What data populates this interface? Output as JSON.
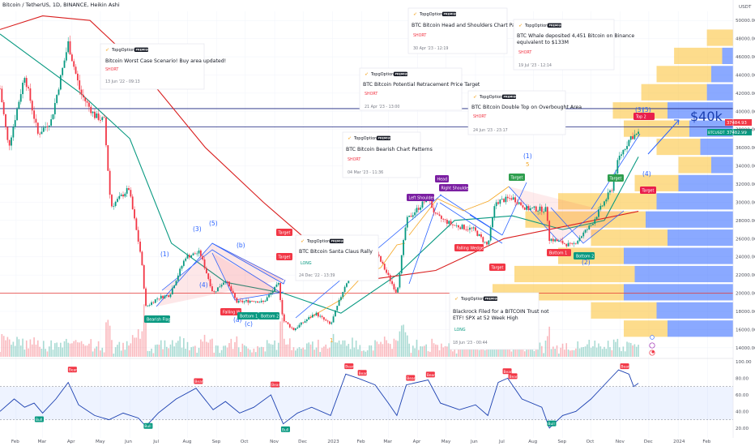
{
  "header": {
    "title": "Bitcoin / TetherUS, 1D, BINANCE, Heikin Ashi",
    "currency": "USDT"
  },
  "colors": {
    "up": "#089981",
    "down": "#f23645",
    "ema_green": "#089981",
    "ma_red": "#d91e1e",
    "pattern_blue": "#2962ff",
    "tag_green": "#2e9e4e",
    "tag_red": "#e91e4c",
    "tag_purple": "#7b1fa2",
    "level_line": "#1a237e",
    "support_line": "#e53935"
  },
  "chart_data": {
    "type": "candlestick",
    "title": "Bitcoin / TetherUS, 1D, BINANCE, Heikin Ashi",
    "y_axis": {
      "ticks": [
        14000,
        16000,
        18000,
        20000,
        22000,
        24000,
        26000,
        28000,
        30000,
        32000,
        34000,
        36000,
        38000,
        40000,
        42000,
        44000,
        46000,
        48000,
        50000
      ],
      "range": [
        13000,
        51000
      ]
    },
    "x_axis": {
      "ticks": [
        "Feb",
        "Mar",
        "Apr",
        "May",
        "Jun",
        "Jul",
        "Aug",
        "Sep",
        "Oct",
        "Nov",
        "Dec",
        "2023",
        "Feb",
        "Mar",
        "Apr",
        "May",
        "Jun",
        "Jul",
        "Aug",
        "Sep",
        "Oct",
        "Nov",
        "Dec",
        "2024",
        "Feb"
      ],
      "range": [
        "2022-01-15",
        "2024-02-28"
      ]
    },
    "price_path": [
      [
        "2022-01-15",
        42500
      ],
      [
        "2022-01-24",
        36000
      ],
      [
        "2022-02-10",
        44000
      ],
      [
        "2022-02-24",
        37500
      ],
      [
        "2022-03-10",
        39000
      ],
      [
        "2022-03-28",
        47500
      ],
      [
        "2022-04-10",
        42000
      ],
      [
        "2022-04-25",
        39500
      ],
      [
        "2022-05-05",
        39000
      ],
      [
        "2022-05-12",
        29500
      ],
      [
        "2022-05-31",
        31500
      ],
      [
        "2022-06-13",
        24000
      ],
      [
        "2022-06-18",
        18500
      ],
      [
        "2022-07-01",
        19500
      ],
      [
        "2022-07-13",
        19800
      ],
      [
        "2022-07-30",
        24000
      ],
      [
        "2022-08-14",
        24500
      ],
      [
        "2022-08-28",
        20000
      ],
      [
        "2022-09-10",
        21500
      ],
      [
        "2022-09-22",
        19000
      ],
      [
        "2022-10-10",
        19200
      ],
      [
        "2022-10-20",
        19000
      ],
      [
        "2022-11-05",
        21000
      ],
      [
        "2022-11-10",
        17000
      ],
      [
        "2022-11-21",
        16000
      ],
      [
        "2022-12-14",
        17800
      ],
      [
        "2022-12-30",
        16500
      ],
      [
        "2023-01-14",
        20800
      ],
      [
        "2023-01-25",
        23000
      ],
      [
        "2023-02-16",
        24500
      ],
      [
        "2023-03-10",
        20000
      ],
      [
        "2023-03-20",
        28000
      ],
      [
        "2023-04-12",
        30500
      ],
      [
        "2023-04-20",
        28500
      ],
      [
        "2023-05-08",
        27500
      ],
      [
        "2023-05-30",
        27000
      ],
      [
        "2023-06-14",
        25200
      ],
      [
        "2023-06-22",
        30000
      ],
      [
        "2023-07-10",
        30500
      ],
      [
        "2023-07-25",
        29300
      ],
      [
        "2023-08-15",
        29200
      ],
      [
        "2023-08-18",
        26000
      ],
      [
        "2023-09-11",
        25200
      ],
      [
        "2023-10-01",
        27500
      ],
      [
        "2023-10-23",
        31500
      ],
      [
        "2023-10-30",
        34800
      ],
      [
        "2023-11-12",
        37200
      ],
      [
        "2023-11-20",
        37500
      ]
    ],
    "moving_averages": [
      {
        "color": "#089981",
        "values": [
          [
            "2022-01-15",
            48500
          ],
          [
            "2022-04-10",
            42000
          ],
          [
            "2022-06-01",
            37000
          ],
          [
            "2022-07-15",
            25500
          ],
          [
            "2022-09-10",
            21200
          ],
          [
            "2022-11-10",
            20000
          ],
          [
            "2023-01-10",
            17800
          ],
          [
            "2023-03-10",
            22000
          ],
          [
            "2023-05-10",
            28000
          ],
          [
            "2023-07-10",
            28500
          ],
          [
            "2023-09-01",
            27000
          ],
          [
            "2023-10-15",
            28000
          ],
          [
            "2023-11-20",
            35000
          ]
        ]
      },
      {
        "color": "#d91e1e",
        "values": [
          [
            "2022-01-15",
            49000
          ],
          [
            "2022-03-01",
            50500
          ],
          [
            "2022-04-20",
            50000
          ],
          [
            "2022-06-10",
            45000
          ],
          [
            "2022-08-20",
            36000
          ],
          [
            "2022-10-20",
            30000
          ],
          [
            "2022-12-20",
            24500
          ],
          [
            "2023-02-10",
            21500
          ],
          [
            "2023-04-20",
            22500
          ],
          [
            "2023-07-01",
            26000
          ],
          [
            "2023-09-01",
            27300
          ],
          [
            "2023-11-20",
            29000
          ]
        ]
      }
    ],
    "horizontal_levels": [
      {
        "price": 40300,
        "color": "#1a237e"
      },
      {
        "price": 38300,
        "color": "#1a237e"
      },
      {
        "price": 20000,
        "color": "#e53935"
      }
    ],
    "price_badges": [
      {
        "value": "37484.93",
        "bg": "#f23645"
      },
      {
        "value": "37482.99",
        "bg": "#089981"
      },
      {
        "value": "BTCUSDT",
        "bg": "#089981"
      }
    ],
    "volume_profile": [
      {
        "price": 48000,
        "left": 0.12,
        "right": 0.0
      },
      {
        "price": 46000,
        "left": 0.22,
        "right": 0.05
      },
      {
        "price": 44000,
        "left": 0.25,
        "right": 0.1
      },
      {
        "price": 42000,
        "left": 0.3,
        "right": 0.12
      },
      {
        "price": 40000,
        "left": 0.25,
        "right": 0.3
      },
      {
        "price": 38000,
        "left": 0.3,
        "right": 0.2
      },
      {
        "price": 36000,
        "left": 0.2,
        "right": 0.15
      },
      {
        "price": 34000,
        "left": 0.15,
        "right": 0.1
      },
      {
        "price": 32000,
        "left": 0.2,
        "right": 0.25
      },
      {
        "price": 30000,
        "left": 0.45,
        "right": 0.35
      },
      {
        "price": 28000,
        "left": 0.55,
        "right": 0.4
      },
      {
        "price": 26000,
        "left": 0.35,
        "right": 0.3
      },
      {
        "price": 24000,
        "left": 0.3,
        "right": 0.5
      },
      {
        "price": 22000,
        "left": 0.55,
        "right": 0.45
      },
      {
        "price": 20000,
        "left": 0.6,
        "right": 0.5
      },
      {
        "price": 18000,
        "left": 0.3,
        "right": 0.35
      },
      {
        "price": 16000,
        "left": 0.2,
        "right": 0.3
      }
    ],
    "rsi": {
      "ticks": [
        20.0,
        40.0,
        60.0,
        80.0,
        100.0
      ],
      "range": [
        10,
        100
      ],
      "band": [
        30,
        70
      ],
      "values": [
        [
          "2022-01-15",
          40
        ],
        [
          "2022-01-30",
          55
        ],
        [
          "2022-02-10",
          45
        ],
        [
          "2022-02-20",
          50
        ],
        [
          "2022-03-01",
          38
        ],
        [
          "2022-03-15",
          55
        ],
        [
          "2022-03-28",
          75
        ],
        [
          "2022-04-08",
          48
        ],
        [
          "2022-04-25",
          35
        ],
        [
          "2022-05-10",
          30
        ],
        [
          "2022-05-25",
          38
        ],
        [
          "2022-06-10",
          32
        ],
        [
          "2022-06-18",
          22
        ],
        [
          "2022-07-01",
          38
        ],
        [
          "2022-07-20",
          55
        ],
        [
          "2022-08-10",
          68
        ],
        [
          "2022-08-28",
          42
        ],
        [
          "2022-09-10",
          52
        ],
        [
          "2022-09-25",
          38
        ],
        [
          "2022-10-10",
          45
        ],
        [
          "2022-10-28",
          60
        ],
        [
          "2022-11-10",
          25
        ],
        [
          "2022-11-25",
          38
        ],
        [
          "2022-12-10",
          45
        ],
        [
          "2022-12-30",
          35
        ],
        [
          "2023-01-15",
          85
        ],
        [
          "2023-01-28",
          80
        ],
        [
          "2023-02-15",
          72
        ],
        [
          "2023-03-01",
          50
        ],
        [
          "2023-03-10",
          35
        ],
        [
          "2023-03-20",
          72
        ],
        [
          "2023-04-12",
          78
        ],
        [
          "2023-04-25",
          50
        ],
        [
          "2023-05-15",
          42
        ],
        [
          "2023-06-01",
          48
        ],
        [
          "2023-06-14",
          35
        ],
        [
          "2023-06-25",
          75
        ],
        [
          "2023-07-05",
          80
        ],
        [
          "2023-07-20",
          55
        ],
        [
          "2023-08-10",
          45
        ],
        [
          "2023-08-18",
          20
        ],
        [
          "2023-09-01",
          35
        ],
        [
          "2023-09-15",
          40
        ],
        [
          "2023-10-01",
          55
        ],
        [
          "2023-10-20",
          78
        ],
        [
          "2023-10-30",
          90
        ],
        [
          "2023-11-10",
          85
        ],
        [
          "2023-11-15",
          70
        ],
        [
          "2023-11-20",
          74
        ]
      ],
      "labels": [
        {
          "text": "Bear",
          "date": "2022-04-01",
          "value": 90
        },
        {
          "text": "Bear",
          "date": "2022-08-12",
          "value": 76
        },
        {
          "text": "Bear",
          "date": "2022-11-01",
          "value": 72
        },
        {
          "text": "Bear",
          "date": "2023-01-18",
          "value": 94
        },
        {
          "text": "Bear",
          "date": "2023-02-01",
          "value": 86
        },
        {
          "text": "Bear",
          "date": "2023-03-24",
          "value": 80
        },
        {
          "text": "Bear",
          "date": "2023-04-14",
          "value": 84
        },
        {
          "text": "Bear",
          "date": "2023-07-04",
          "value": 88
        },
        {
          "text": "Bear",
          "date": "2023-07-10",
          "value": 82
        },
        {
          "text": "Bear",
          "date": "2023-11-05",
          "value": 94
        },
        {
          "text": "Bull",
          "date": "2022-02-25",
          "value": 30
        },
        {
          "text": "Bull",
          "date": "2022-06-20",
          "value": 22
        },
        {
          "text": "Bull",
          "date": "2022-11-12",
          "value": 18
        },
        {
          "text": "Bull",
          "date": "2023-08-20",
          "value": 25
        }
      ]
    },
    "dates_volume": [
      "2022-01-15",
      "2023-11-20"
    ]
  },
  "cards": [
    {
      "brand": "TopgOptions",
      "badge": "PREMIUM",
      "title": "Bitcoin Worst Case Scenario! Buy area updated!",
      "signal": "SHORT",
      "date": "13 Jun '22 - 09:13",
      "lines": 1
    },
    {
      "brand": "TopgOptions",
      "badge": "PREMIUM",
      "title": "BTC Bitcoin Head and Shoulders Chart Pattern",
      "signal": "SHORT",
      "date": "30 Apr '23 - 12:19",
      "lines": 1
    },
    {
      "brand": "TopgOptions",
      "badge": "PREMIUM",
      "title": "BTC Whale deposited 4,451 Bitcoin on Binance equivalent to $133M",
      "signal": "SHORT",
      "date": "19 Jul '23 - 12:14",
      "lines": 2
    },
    {
      "brand": "TopgOptions",
      "badge": "PREMIUM",
      "title": "BTC Bitcoin Potential Retracement Price Target",
      "signal": "SHORT",
      "date": "21 Apr '23 - 13:00",
      "lines": 1
    },
    {
      "brand": "TopgOptions",
      "badge": "PREMIUM",
      "title": "BTC Bitcoin Double Top on Overbought Area",
      "signal": "SHORT",
      "date": "24 Jun '23 - 23:17",
      "lines": 1
    },
    {
      "brand": "TopgOptions",
      "badge": "PREMIUM",
      "title": "BTC Bitcoin Bearish Chart Patterns",
      "signal": "SHORT",
      "date": "04 Mar '23 - 11:36",
      "lines": 1
    },
    {
      "brand": "TopgOptions",
      "badge": "PREMIUM",
      "title": "BTC Bitcoin Santa Claus Rally",
      "signal": "LONG",
      "date": "24 Dec '22 - 13:39",
      "lines": 1
    },
    {
      "brand": "TopgOptions",
      "badge": "PREMIUM",
      "title": "Blackrock Filed for a BITCOIN Trust not ETF! SPX at 52 Week High",
      "signal": "LONG",
      "date": "18 Jun '23 - 00:44",
      "lines": 2
    }
  ],
  "tags": [
    {
      "text": "Bearish Flag",
      "color": "#089981"
    },
    {
      "text": "Falling W",
      "color": "#f23645"
    },
    {
      "text": "Bottom 1",
      "color": "#089981"
    },
    {
      "text": "Bottom 2",
      "color": "#089981"
    },
    {
      "text": "Target",
      "color": "#f23645"
    },
    {
      "text": "Target",
      "color": "#f23645"
    },
    {
      "text": "Head",
      "color": "#7b1fa2"
    },
    {
      "text": "Left Shoulder",
      "color": "#7b1fa2"
    },
    {
      "text": "Right Shoulder",
      "color": "#7b1fa2"
    },
    {
      "text": "Falling Wedge",
      "color": "#f23645"
    },
    {
      "text": "Target",
      "color": "#f23645"
    },
    {
      "text": "Target",
      "color": "#2e9e4e"
    },
    {
      "text": "Bottom 1",
      "color": "#f23645"
    },
    {
      "text": "Bottom 2",
      "color": "#089981"
    },
    {
      "text": "Target",
      "color": "#2e9e4e"
    },
    {
      "text": "Target",
      "color": "#e91e4c"
    },
    {
      "text": "Top 2",
      "color": "#e91e4c"
    }
  ],
  "waves": [
    {
      "text": "(1)"
    },
    {
      "text": "(3)"
    },
    {
      "text": "(5)"
    },
    {
      "text": "(4)"
    },
    {
      "text": "(b)"
    },
    {
      "text": "(a)"
    },
    {
      "text": "(c)"
    },
    {
      "text": "(1)"
    },
    {
      "text": "(4)"
    },
    {
      "text": "(3)"
    },
    {
      "text": "(5)"
    },
    {
      "text": "(2)"
    }
  ],
  "orange_waves": [
    {
      "text": "5"
    },
    {
      "text": "1"
    }
  ],
  "annotation_big": "$40k",
  "overlay_icons": [
    "flag-icon",
    "flag-icon",
    "flag-icon",
    "flag-icon"
  ]
}
